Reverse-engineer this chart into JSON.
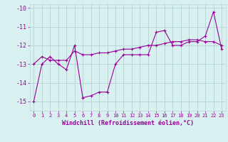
{
  "xlabel": "Windchill (Refroidissement éolien,°C)",
  "line1_x": [
    0,
    1,
    2,
    3,
    4,
    5,
    6,
    7,
    8,
    9,
    10,
    11,
    12,
    13,
    14,
    15,
    16,
    17,
    18,
    19,
    20,
    21,
    22,
    23
  ],
  "line1_y": [
    -15.0,
    -13.0,
    -12.6,
    -13.0,
    -13.3,
    -12.0,
    -14.8,
    -14.7,
    -14.5,
    -14.5,
    -13.0,
    -12.5,
    -12.5,
    -12.5,
    -12.5,
    -11.3,
    -11.2,
    -12.0,
    -12.0,
    -11.8,
    -11.8,
    -11.5,
    -10.2,
    -12.2
  ],
  "line2_x": [
    0,
    1,
    2,
    3,
    4,
    5,
    6,
    7,
    8,
    9,
    10,
    11,
    12,
    13,
    14,
    15,
    16,
    17,
    18,
    19,
    20,
    21,
    22,
    23
  ],
  "line2_y": [
    -13.0,
    -12.6,
    -12.8,
    -12.8,
    -12.8,
    -12.3,
    -12.5,
    -12.5,
    -12.4,
    -12.4,
    -12.3,
    -12.2,
    -12.2,
    -12.1,
    -12.0,
    -12.0,
    -11.9,
    -11.8,
    -11.8,
    -11.7,
    -11.7,
    -11.8,
    -11.8,
    -12.0
  ],
  "line_color": "#990099",
  "bg_color": "#d8f0f0",
  "grid_color": "#b8d8d8",
  "ylim": [
    -15.5,
    -9.8
  ],
  "xlim": [
    -0.5,
    23.5
  ],
  "yticks": [
    -15,
    -14,
    -13,
    -12,
    -11,
    -10
  ],
  "xticks": [
    0,
    1,
    2,
    3,
    4,
    5,
    6,
    7,
    8,
    9,
    10,
    11,
    12,
    13,
    14,
    15,
    16,
    17,
    18,
    19,
    20,
    21,
    22,
    23
  ]
}
